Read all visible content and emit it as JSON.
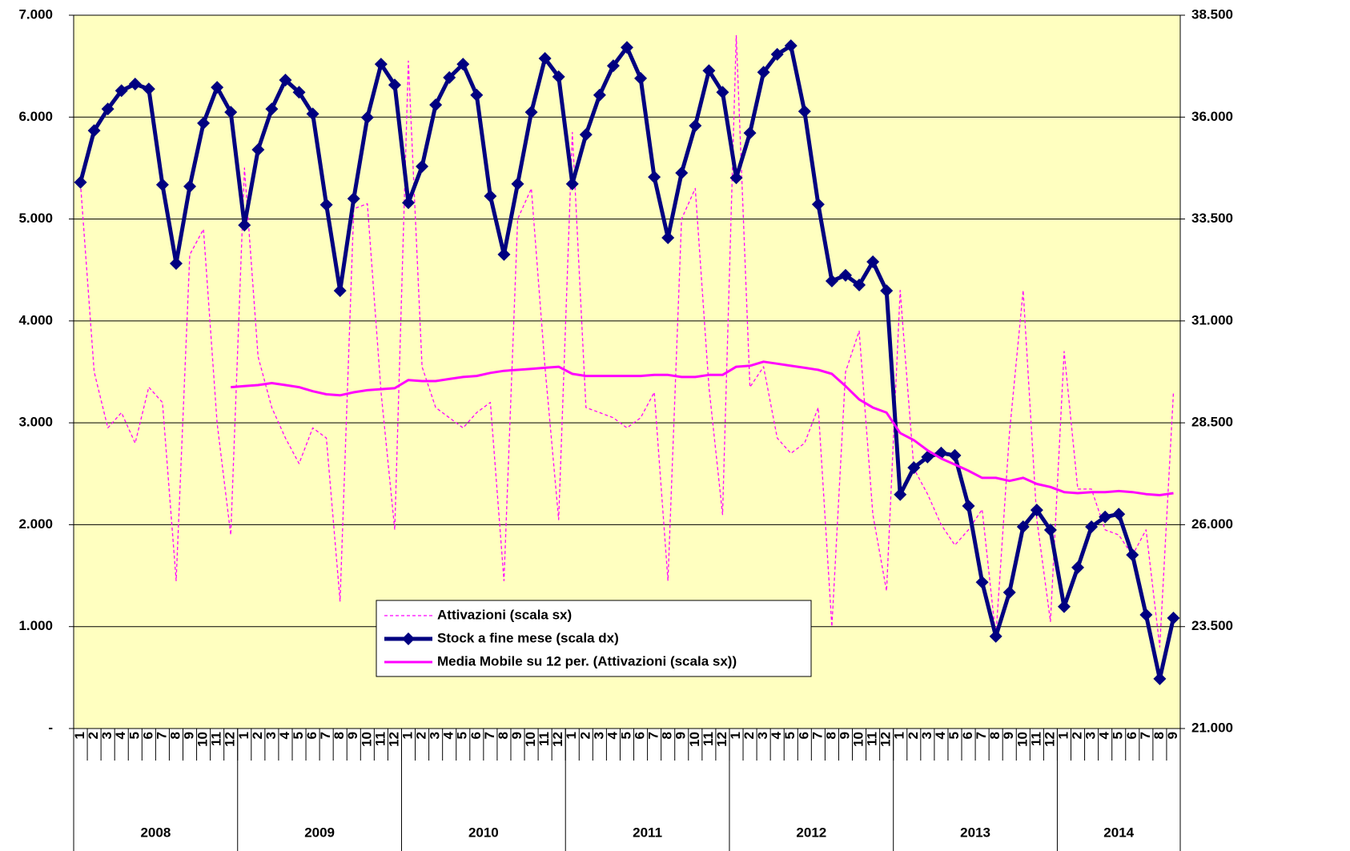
{
  "chart_data": {
    "type": "line",
    "categories": [
      "1",
      "2",
      "3",
      "4",
      "5",
      "6",
      "7",
      "8",
      "9",
      "10",
      "11",
      "12",
      "1",
      "2",
      "3",
      "4",
      "5",
      "6",
      "7",
      "8",
      "9",
      "10",
      "11",
      "12",
      "1",
      "2",
      "3",
      "4",
      "5",
      "6",
      "7",
      "8",
      "9",
      "10",
      "11",
      "12",
      "1",
      "2",
      "3",
      "4",
      "5",
      "6",
      "7",
      "8",
      "9",
      "10",
      "11",
      "12",
      "1",
      "2",
      "3",
      "4",
      "5",
      "6",
      "7",
      "8",
      "9",
      "10",
      "11",
      "12",
      "1",
      "2",
      "3",
      "4",
      "5",
      "6",
      "7",
      "8",
      "9",
      "10",
      "11",
      "12",
      "1",
      "2",
      "3",
      "4",
      "5",
      "6",
      "7",
      "8",
      "9"
    ],
    "years": [
      "2008",
      "2009",
      "2010",
      "2011",
      "2012",
      "2013",
      "2014"
    ],
    "ylim": [
      0,
      7000
    ],
    "yticks": [
      {
        "value": 0,
        "label": "-"
      },
      {
        "value": 1000,
        "label": "1.000"
      },
      {
        "value": 2000,
        "label": "2.000"
      },
      {
        "value": 3000,
        "label": "3.000"
      },
      {
        "value": 4000,
        "label": "4.000"
      },
      {
        "value": 5000,
        "label": "5.000"
      },
      {
        "value": 6000,
        "label": "6.000"
      },
      {
        "value": 7000,
        "label": "7.000"
      }
    ],
    "y2lim": [
      21000,
      38500
    ],
    "y2ticks": [
      {
        "value": 21000,
        "label": "21.000"
      },
      {
        "value": 23500,
        "label": "23.500"
      },
      {
        "value": 26000,
        "label": "26.000"
      },
      {
        "value": 28500,
        "label": "28.500"
      },
      {
        "value": 31000,
        "label": "31.000"
      },
      {
        "value": 33500,
        "label": "33.500"
      },
      {
        "value": 36000,
        "label": "36.000"
      },
      {
        "value": 38500,
        "label": "38.500"
      }
    ],
    "grid": true,
    "plot_background": "#ffffc0",
    "series": [
      {
        "name": "Attivazioni (scala sx)",
        "color": "#ff00ff",
        "style": "dashed",
        "values": [
          5350,
          3500,
          2950,
          3100,
          2800,
          3350,
          3200,
          1450,
          4650,
          4900,
          3000,
          1900,
          5500,
          3650,
          3150,
          2850,
          2600,
          2950,
          2850,
          1250,
          5100,
          5150,
          3300,
          1950,
          6550,
          3550,
          3150,
          3050,
          2950,
          3100,
          3200,
          1450,
          5000,
          5300,
          3550,
          2050,
          5850,
          3150,
          3100,
          3050,
          2950,
          3050,
          3300,
          1450,
          5000,
          5300,
          3350,
          2100,
          6800,
          3350,
          3550,
          2850,
          2700,
          2800,
          3150,
          1000,
          3500,
          3900,
          2100,
          1350,
          4300,
          2550,
          2300,
          2000,
          1800,
          1950,
          2150,
          900,
          2900,
          4300,
          2050,
          1050,
          3700,
          2350,
          2350,
          1950,
          1900,
          1700,
          1950,
          800,
          3300
        ]
      },
      {
        "name": "Stock a fine mese (scala dx)",
        "color": "#000080",
        "style": "markers",
        "axis": "y2",
        "values": [
          34400,
          35670,
          36200,
          36650,
          36810,
          36690,
          34340,
          32410,
          34300,
          35850,
          36730,
          36120,
          33350,
          35200,
          36200,
          36910,
          36610,
          36080,
          33850,
          31740,
          34000,
          35990,
          37300,
          36790,
          33900,
          34790,
          36300,
          36970,
          37300,
          36540,
          34060,
          32630,
          34360,
          36120,
          37440,
          36990,
          34360,
          35570,
          36540,
          37260,
          37710,
          36950,
          34530,
          33040,
          34630,
          35790,
          37140,
          36610,
          34510,
          35610,
          37100,
          37540,
          37750,
          36140,
          33860,
          31980,
          32120,
          31880,
          32450,
          31740,
          26740,
          27400,
          27660,
          27760,
          27700,
          26460,
          24590,
          23260,
          24340,
          25950,
          26360,
          25870,
          23990,
          24950,
          25950,
          26190,
          26260,
          25260,
          23790,
          22220,
          23710
        ]
      },
      {
        "name": "Media Mobile su 12 per. (Attivazioni (scala sx))",
        "color": "#ff00ff",
        "style": "solid",
        "values": [
          null,
          null,
          null,
          null,
          null,
          null,
          null,
          null,
          null,
          null,
          null,
          3350,
          3360,
          3370,
          3390,
          3370,
          3350,
          3310,
          3280,
          3270,
          3300,
          3320,
          3330,
          3340,
          3420,
          3410,
          3410,
          3430,
          3450,
          3460,
          3490,
          3510,
          3520,
          3530,
          3540,
          3550,
          3480,
          3460,
          3460,
          3460,
          3460,
          3460,
          3470,
          3470,
          3450,
          3450,
          3470,
          3470,
          3550,
          3560,
          3600,
          3580,
          3560,
          3540,
          3520,
          3480,
          3360,
          3230,
          3150,
          3100,
          2900,
          2830,
          2730,
          2650,
          2590,
          2530,
          2460,
          2460,
          2430,
          2460,
          2400,
          2370,
          2320,
          2310,
          2320,
          2320,
          2330,
          2320,
          2300,
          2290,
          2310
        ]
      }
    ]
  }
}
